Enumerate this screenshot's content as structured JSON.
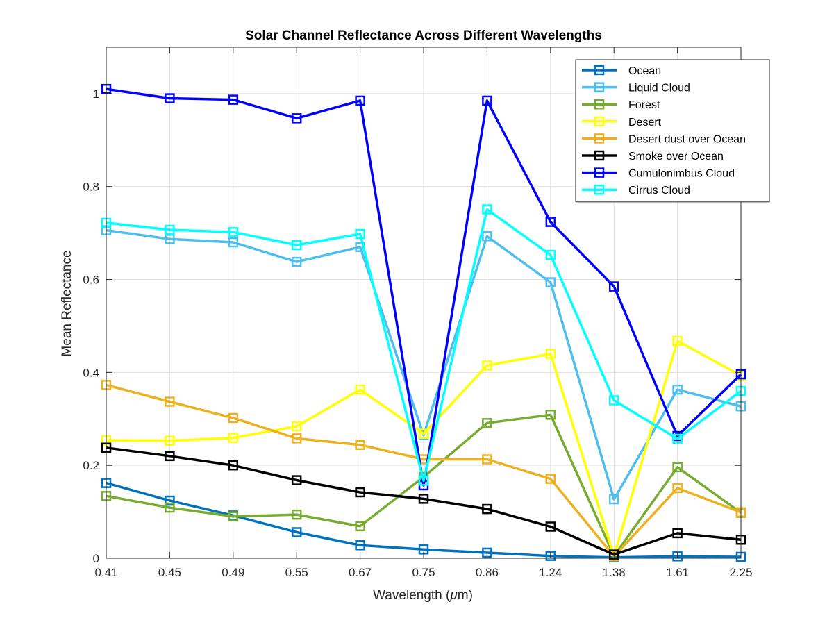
{
  "chart_data": {
    "type": "line",
    "title": "Solar Channel Reflectance Across Different Wavelengths",
    "xlabel": "Wavelength (",
    "xlabel_mu": "μ",
    "xlabel_end": "m)",
    "ylabel": "Mean Reflectance",
    "categories": [
      "0.41",
      "0.45",
      "0.49",
      "0.55",
      "0.67",
      "0.75",
      "0.86",
      "1.24",
      "1.38",
      "1.61",
      "2.25"
    ],
    "ylim": [
      0,
      1.1
    ],
    "yticks": [
      0,
      0.2,
      0.4,
      0.6,
      0.8,
      1
    ],
    "ytick_labels": [
      "0",
      "0.2",
      "0.4",
      "0.6",
      "0.8",
      "1"
    ],
    "grid": true,
    "legend_position": "top-right",
    "marker": "square",
    "series": [
      {
        "name": "Ocean",
        "color": "#0072BD",
        "values": [
          0.162,
          0.124,
          0.092,
          0.056,
          0.028,
          0.019,
          0.012,
          0.005,
          0.002,
          0.004,
          0.003
        ]
      },
      {
        "name": "Liquid Cloud",
        "color": "#4DBEEE",
        "values": [
          0.706,
          0.687,
          0.68,
          0.638,
          0.67,
          0.265,
          0.693,
          0.594,
          0.127,
          0.363,
          0.327
        ]
      },
      {
        "name": "Forest",
        "color": "#77AC30",
        "values": [
          0.134,
          0.109,
          0.09,
          0.094,
          0.069,
          0.175,
          0.291,
          0.309,
          0.005,
          0.196,
          0.098
        ]
      },
      {
        "name": "Desert",
        "color": "#FFFF00",
        "values": [
          0.254,
          0.253,
          0.259,
          0.284,
          0.363,
          0.268,
          0.415,
          0.44,
          0.005,
          0.468,
          0.393
        ]
      },
      {
        "name": "Desert dust over Ocean",
        "color": "#EDB120",
        "values": [
          0.373,
          0.337,
          0.302,
          0.258,
          0.244,
          0.213,
          0.213,
          0.171,
          0.004,
          0.151,
          0.099
        ]
      },
      {
        "name": "Smoke over Ocean",
        "color": "#000000",
        "values": [
          0.238,
          0.22,
          0.2,
          0.168,
          0.142,
          0.128,
          0.106,
          0.068,
          0.008,
          0.054,
          0.04
        ]
      },
      {
        "name": "Cumulonimbus Cloud",
        "color": "#0000FF",
        "values": [
          1.01,
          0.99,
          0.987,
          0.947,
          0.985,
          0.157,
          0.985,
          0.724,
          0.585,
          0.263,
          0.396
        ]
      },
      {
        "name": "Cirrus Cloud",
        "color": "#00FFFF",
        "values": [
          0.722,
          0.707,
          0.702,
          0.674,
          0.698,
          0.167,
          0.751,
          0.653,
          0.34,
          0.257,
          0.36
        ]
      }
    ]
  }
}
